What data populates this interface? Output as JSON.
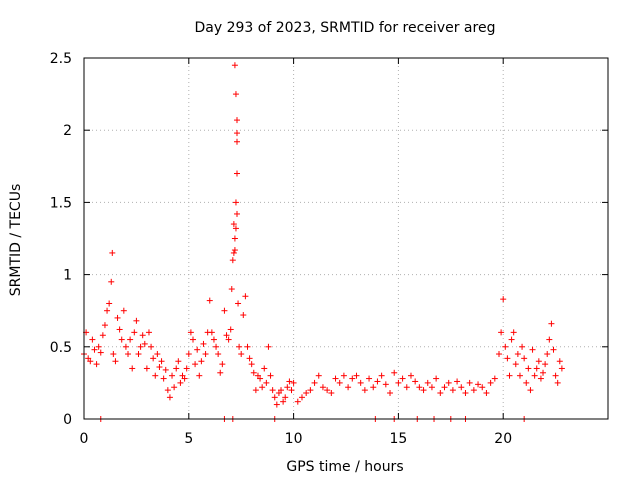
{
  "chart_data": {
    "type": "scatter",
    "title": "Day 293 of 2023, SRMTID for receiver areg",
    "xlabel": "GPS time / hours",
    "ylabel": "SRMTID / TECUs",
    "xlim": [
      0,
      25
    ],
    "ylim": [
      0,
      2.5
    ],
    "xticks": [
      0,
      5,
      10,
      15,
      20
    ],
    "yticks": [
      0,
      0.5,
      1,
      1.5,
      2,
      2.5
    ],
    "xtick_labels": [
      "0",
      "5",
      "10",
      "15",
      "20"
    ],
    "ytick_labels": [
      "0",
      "0.5",
      "1",
      "1.5",
      "2",
      "2.5"
    ],
    "grid": true,
    "marker": "+",
    "series_color": "#ff0000",
    "series": [
      {
        "name": "SRMTID",
        "x": [
          0.0,
          0.1,
          0.2,
          0.3,
          0.4,
          0.5,
          0.6,
          0.7,
          0.8,
          0.9,
          1.0,
          1.1,
          1.2,
          1.3,
          1.35,
          1.4,
          1.5,
          1.6,
          1.7,
          1.8,
          1.9,
          2.0,
          2.1,
          2.2,
          2.3,
          2.4,
          2.5,
          2.6,
          2.7,
          2.8,
          2.9,
          3.0,
          3.1,
          3.2,
          3.3,
          3.4,
          3.5,
          3.6,
          3.7,
          3.8,
          3.9,
          4.0,
          4.1,
          4.2,
          4.3,
          4.4,
          4.5,
          4.6,
          4.7,
          4.8,
          4.9,
          5.0,
          5.1,
          5.2,
          5.3,
          5.4,
          5.5,
          5.6,
          5.7,
          5.8,
          5.9,
          6.0,
          6.1,
          6.2,
          6.3,
          6.4,
          6.5,
          6.6,
          6.7,
          6.8,
          6.9,
          7.0,
          7.05,
          7.1,
          7.15,
          7.2,
          7.25,
          7.3,
          7.35,
          7.4,
          7.5,
          7.6,
          7.7,
          7.8,
          7.9,
          8.0,
          8.1,
          8.2,
          8.3,
          8.4,
          8.5,
          8.6,
          8.7,
          8.8,
          8.9,
          9.0,
          9.1,
          9.2,
          9.3,
          9.4,
          9.5,
          9.6,
          9.7,
          9.8,
          9.9,
          10.0,
          10.2,
          10.4,
          10.6,
          10.8,
          11.0,
          11.2,
          11.4,
          11.6,
          11.8,
          12.0,
          12.2,
          12.4,
          12.6,
          12.8,
          13.0,
          13.2,
          13.4,
          13.6,
          13.8,
          14.0,
          14.2,
          14.4,
          14.6,
          14.8,
          15.0,
          15.2,
          15.4,
          15.6,
          15.8,
          16.0,
          16.2,
          16.4,
          16.6,
          16.8,
          17.0,
          17.2,
          17.4,
          17.6,
          17.8,
          18.0,
          18.2,
          18.4,
          18.6,
          18.8,
          19.0,
          19.2,
          19.4,
          19.6,
          19.8,
          19.9,
          20.0,
          20.1,
          20.2,
          20.3,
          20.4,
          20.5,
          20.6,
          20.7,
          20.8,
          20.9,
          21.0,
          21.1,
          21.2,
          21.3,
          21.4,
          21.5,
          21.6,
          21.7,
          21.8,
          21.9,
          22.0,
          22.1,
          22.2,
          22.3,
          22.4,
          22.5,
          22.6,
          22.7,
          22.8,
          0.8,
          6.7,
          7.1,
          9.1,
          13.9,
          14.8,
          15.9,
          16.7,
          17.5,
          18.2,
          21.0,
          7.3,
          7.3,
          7.3,
          7.25,
          7.3,
          7.25,
          7.2,
          7.2,
          7.15
        ],
        "y": [
          0.45,
          0.6,
          0.42,
          0.4,
          0.55,
          0.48,
          0.38,
          0.5,
          0.46,
          0.58,
          0.65,
          0.75,
          0.8,
          0.95,
          1.15,
          0.45,
          0.4,
          0.7,
          0.62,
          0.55,
          0.75,
          0.5,
          0.45,
          0.55,
          0.35,
          0.6,
          0.68,
          0.45,
          0.5,
          0.58,
          0.52,
          0.35,
          0.6,
          0.5,
          0.42,
          0.3,
          0.45,
          0.36,
          0.4,
          0.28,
          0.34,
          0.2,
          0.15,
          0.3,
          0.22,
          0.35,
          0.4,
          0.25,
          0.3,
          0.28,
          0.35,
          0.45,
          0.6,
          0.55,
          0.38,
          0.48,
          0.3,
          0.4,
          0.52,
          0.45,
          0.6,
          0.82,
          0.6,
          0.55,
          0.5,
          0.45,
          0.32,
          0.38,
          0.75,
          0.58,
          0.55,
          0.62,
          0.9,
          1.1,
          1.35,
          2.45,
          2.25,
          1.7,
          0.8,
          0.5,
          0.45,
          0.72,
          0.85,
          0.5,
          0.42,
          0.38,
          0.32,
          0.2,
          0.3,
          0.28,
          0.22,
          0.35,
          0.25,
          0.5,
          0.3,
          0.2,
          0.15,
          0.1,
          0.18,
          0.2,
          0.12,
          0.15,
          0.22,
          0.26,
          0.2,
          0.25,
          0.12,
          0.15,
          0.18,
          0.2,
          0.25,
          0.3,
          0.22,
          0.2,
          0.18,
          0.28,
          0.25,
          0.3,
          0.22,
          0.28,
          0.3,
          0.25,
          0.2,
          0.28,
          0.22,
          0.26,
          0.3,
          0.24,
          0.18,
          0.32,
          0.25,
          0.28,
          0.22,
          0.3,
          0.26,
          0.22,
          0.2,
          0.25,
          0.22,
          0.28,
          0.18,
          0.22,
          0.25,
          0.2,
          0.26,
          0.22,
          0.18,
          0.25,
          0.2,
          0.24,
          0.22,
          0.18,
          0.25,
          0.28,
          0.45,
          0.6,
          0.83,
          0.5,
          0.42,
          0.3,
          0.55,
          0.6,
          0.38,
          0.45,
          0.3,
          0.5,
          0.42,
          0.25,
          0.35,
          0.2,
          0.48,
          0.3,
          0.35,
          0.4,
          0.28,
          0.32,
          0.38,
          0.45,
          0.55,
          0.66,
          0.48,
          0.3,
          0.25,
          0.4,
          0.35,
          0.0,
          0.0,
          0.0,
          0.0,
          0.0,
          0.0,
          0.0,
          0.0,
          0.0,
          0.0,
          0.0,
          2.07,
          1.98,
          1.92,
          1.5,
          1.42,
          1.32,
          1.25,
          1.17,
          1.15
        ]
      }
    ]
  }
}
